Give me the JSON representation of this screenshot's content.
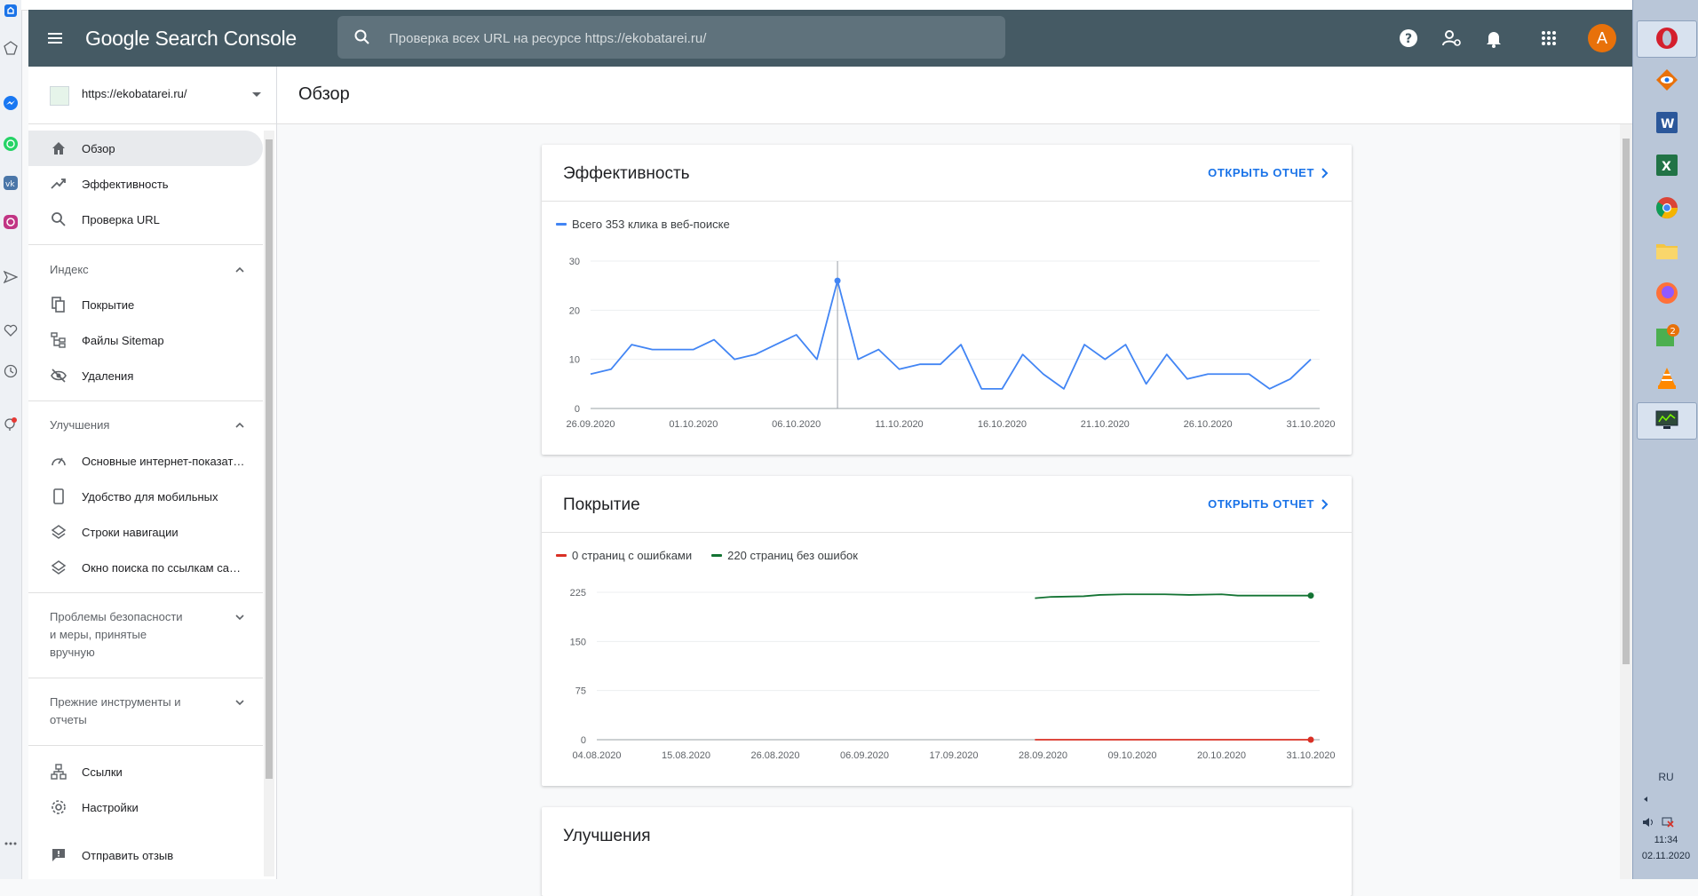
{
  "header": {
    "logo": "Google Search Console",
    "search_placeholder": "Проверка всех URL на ресурсе https://ekobatarei.ru/",
    "avatar_letter": "A"
  },
  "property": {
    "url": "https://ekobatarei.ru/"
  },
  "sidebar": {
    "top_items": [
      {
        "label": "Обзор",
        "icon": "home-icon",
        "active": true
      },
      {
        "label": "Эффективность",
        "icon": "trending-up-icon"
      },
      {
        "label": "Проверка URL",
        "icon": "search-icon"
      }
    ],
    "index": {
      "heading": "Индекс",
      "items": [
        {
          "label": "Покрытие",
          "icon": "file-copy-icon"
        },
        {
          "label": "Файлы Sitemap",
          "icon": "sitemap-icon"
        },
        {
          "label": "Удаления",
          "icon": "visibility-off-icon"
        }
      ]
    },
    "enhancements": {
      "heading": "Улучшения",
      "items": [
        {
          "label": "Основные интернет-показатели",
          "icon": "speed-gauge-icon"
        },
        {
          "label": "Удобство для мобильных",
          "icon": "smartphone-icon"
        },
        {
          "label": "Строки навигации",
          "icon": "layers-icon"
        },
        {
          "label": "Окно поиска по ссылкам сайта",
          "icon": "layers-icon"
        }
      ]
    },
    "security": {
      "heading_lines": [
        "Проблемы безопасности",
        "и меры, принятые",
        "вручную"
      ]
    },
    "legacy": {
      "heading_lines": [
        "Прежние инструменты и",
        "отчеты"
      ]
    },
    "bottom_items": [
      {
        "label": "Ссылки",
        "icon": "links-network-icon"
      },
      {
        "label": "Настройки",
        "icon": "settings-gear-icon"
      },
      {
        "label": "Отправить отзыв",
        "icon": "feedback-icon"
      }
    ]
  },
  "main": {
    "page_title": "Обзор"
  },
  "cards": {
    "performance": {
      "title": "Эффективность",
      "open_report": "ОТКРЫТЬ ОТЧЕТ",
      "legend": "Всего 353 клика в веб-поиске"
    },
    "coverage": {
      "title": "Покрытие",
      "open_report": "ОТКРЫТЬ ОТЧЕТ",
      "legend_errors": "0 страниц с ошибками",
      "legend_valid": "220 страниц без ошибок"
    },
    "enhancements": {
      "title": "Улучшения"
    }
  },
  "colors": {
    "clicks": "#4285f4",
    "errors": "#d93025",
    "valid": "#137333",
    "header_bg": "#455a64",
    "link": "#1a73e8"
  },
  "chart_data": [
    {
      "type": "line",
      "title": "Эффективность",
      "series": [
        {
          "name": "Всего 353 клика в веб-поиске",
          "values": [
            7,
            8,
            13,
            12,
            12,
            12,
            14,
            10,
            11,
            13,
            15,
            10,
            26,
            10,
            12,
            8,
            9,
            9,
            13,
            4,
            4,
            11,
            7,
            4,
            13,
            10,
            13,
            5,
            11,
            6,
            7,
            7,
            7,
            4,
            6,
            10
          ]
        }
      ],
      "x_start": "26.09.2020",
      "x_end": "31.10.2020",
      "x_ticks": [
        "26.09.2020",
        "01.10.2020",
        "06.10.2020",
        "11.10.2020",
        "16.10.2020",
        "21.10.2020",
        "26.10.2020",
        "31.10.2020"
      ],
      "y_ticks": [
        0,
        10,
        20,
        30
      ],
      "ylim": [
        0,
        30
      ],
      "highlight_date": "08.10.2020",
      "highlight_value": 26
    },
    {
      "type": "line",
      "title": "Покрытие",
      "series": [
        {
          "name": "220 страниц без ошибок",
          "dates": [
            "27.09.2020",
            "29.09.2020",
            "03.10.2020",
            "05.10.2020",
            "08.10.2020",
            "13.10.2020",
            "16.10.2020",
            "20.10.2020",
            "22.10.2020",
            "25.10.2020",
            "31.10.2020"
          ],
          "values": [
            216,
            218,
            219,
            221,
            222,
            222,
            221,
            222,
            220,
            220,
            220
          ]
        },
        {
          "name": "0 страниц с ошибками",
          "dates": [
            "27.09.2020",
            "31.10.2020"
          ],
          "values": [
            0,
            0
          ]
        }
      ],
      "x_start": "04.08.2020",
      "x_end": "31.10.2020",
      "x_ticks": [
        "04.08.2020",
        "15.08.2020",
        "26.08.2020",
        "06.09.2020",
        "17.09.2020",
        "28.09.2020",
        "09.10.2020",
        "20.10.2020",
        "31.10.2020"
      ],
      "y_ticks": [
        0,
        75,
        150,
        225
      ],
      "ylim": [
        0,
        225
      ]
    }
  ],
  "taskbar": {
    "lang": "RU",
    "time": "11:34",
    "date": "02.11.2020"
  }
}
